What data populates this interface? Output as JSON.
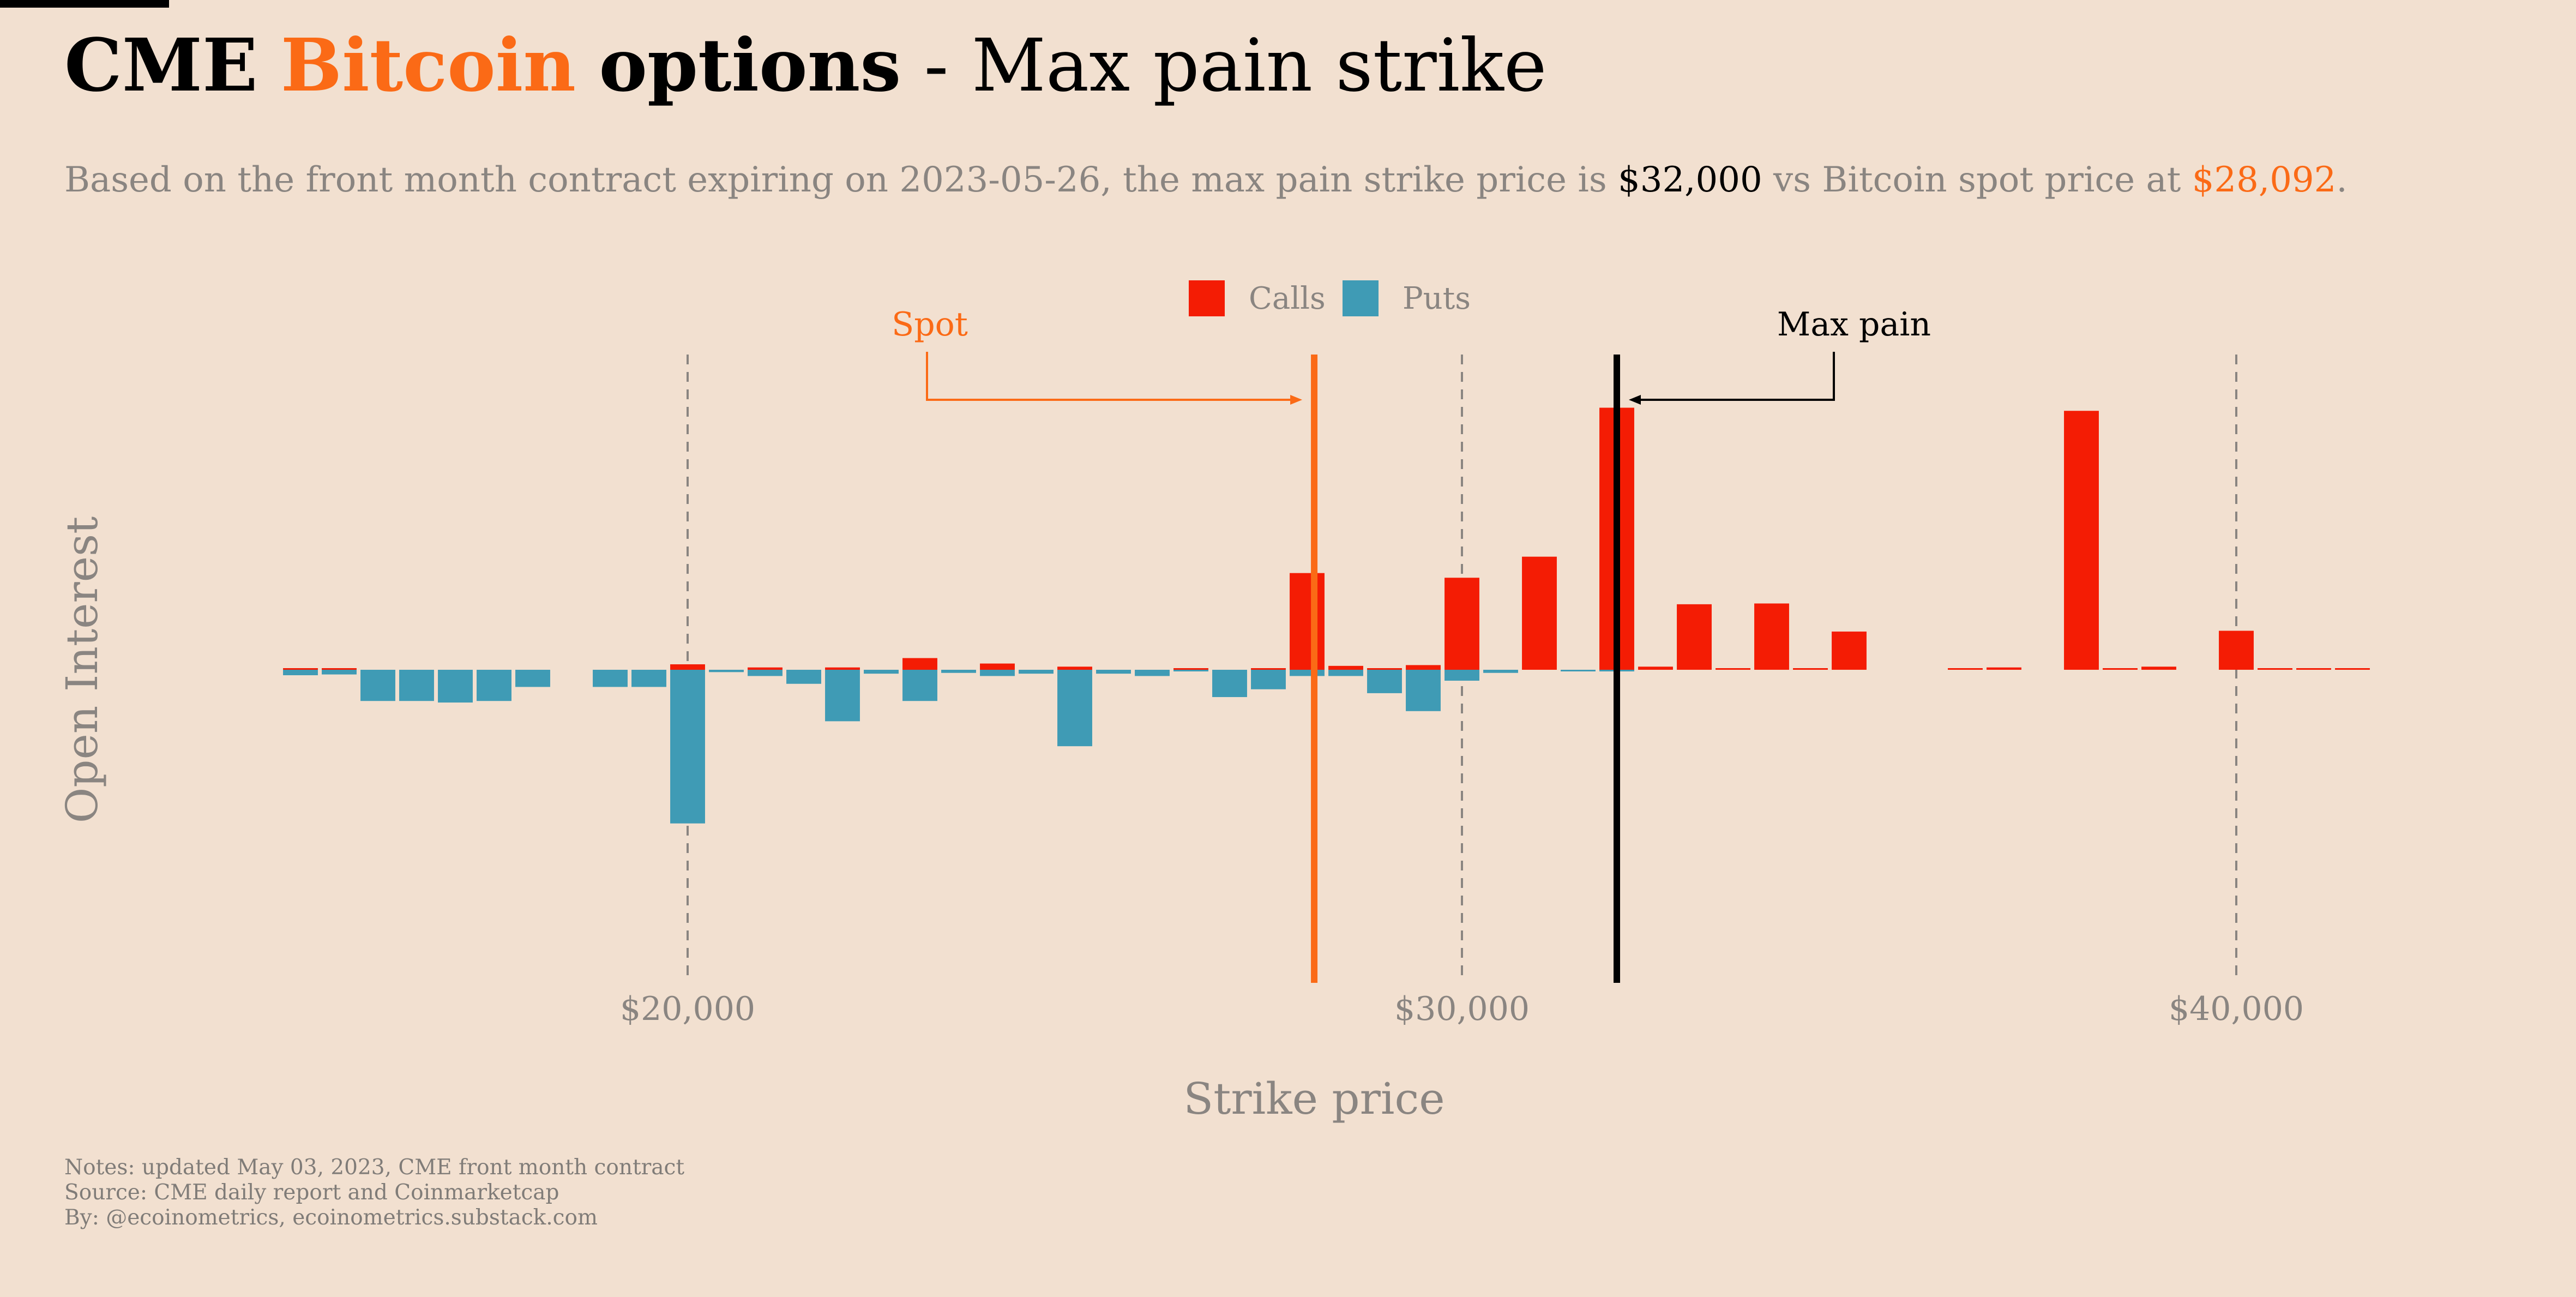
{
  "header": {
    "title_part1": "CME",
    "title_part2": "Bitcoin",
    "title_part3": "options",
    "title_part4": "- Max pain strike",
    "subtitle_prefix": "Based on the front month contract expiring on 2023-05-26, the max pain strike price is",
    "subtitle_maxpain": "$32,000",
    "subtitle_mid": "vs Bitcoin spot price at",
    "subtitle_spot": "$28,092",
    "subtitle_end": "."
  },
  "notes": {
    "line1": "Notes: updated May 03, 2023, CME front month contract",
    "line2": "Source: CME daily report and Coinmarketcap",
    "line3": "By: @ecoinometrics, ecoinometrics.substack.com"
  },
  "colors": {
    "calls": "#f41c04",
    "puts": "#3f9bb5",
    "spot": "#fb6a16",
    "maxpain": "#000000",
    "grid": "#8a8581"
  },
  "chart_data": {
    "type": "bar",
    "title": "CME Bitcoin options - Max pain strike",
    "xlabel": "Strike price",
    "ylabel": "Open Interest",
    "xlim": [
      14600,
      42100
    ],
    "ylim": [
      -400,
      415
    ],
    "bar_width_strike": 450,
    "xticks": [
      20000,
      30000,
      40000
    ],
    "xtick_labels": [
      "$20,000",
      "$30,000",
      "$40,000"
    ],
    "legend": {
      "position": "top-center",
      "entries": [
        "Calls",
        "Puts"
      ]
    },
    "annotations": {
      "spot_label": "Spot",
      "spot_value": 28092,
      "maxpain_label": "Max pain",
      "maxpain_value": 32000
    },
    "series": [
      {
        "name": "Calls",
        "points": [
          [
            15000,
            1
          ],
          [
            15500,
            1
          ],
          [
            20000,
            7
          ],
          [
            21000,
            3
          ],
          [
            22000,
            3
          ],
          [
            23000,
            15
          ],
          [
            24000,
            8
          ],
          [
            25000,
            4
          ],
          [
            26500,
            1
          ],
          [
            27500,
            1
          ],
          [
            28000,
            124
          ],
          [
            28500,
            5
          ],
          [
            29000,
            2
          ],
          [
            29500,
            6
          ],
          [
            30000,
            118
          ],
          [
            31000,
            145
          ],
          [
            32000,
            336
          ],
          [
            32500,
            4
          ],
          [
            33000,
            84
          ],
          [
            33500,
            1
          ],
          [
            34000,
            85
          ],
          [
            34500,
            2
          ],
          [
            35000,
            49
          ],
          [
            36500,
            1
          ],
          [
            37000,
            3
          ],
          [
            38000,
            332
          ],
          [
            38500,
            1
          ],
          [
            39000,
            4
          ],
          [
            40000,
            50
          ],
          [
            40500,
            1
          ],
          [
            41000,
            2
          ],
          [
            41500,
            1
          ]
        ]
      },
      {
        "name": "Puts",
        "points": [
          [
            15000,
            -7
          ],
          [
            15500,
            -6
          ],
          [
            16000,
            -40
          ],
          [
            16500,
            -40
          ],
          [
            17000,
            -42
          ],
          [
            17500,
            -40
          ],
          [
            18000,
            -22
          ],
          [
            19000,
            -22
          ],
          [
            19500,
            -22
          ],
          [
            20000,
            -197
          ],
          [
            20500,
            -3
          ],
          [
            21000,
            -8
          ],
          [
            21500,
            -18
          ],
          [
            22000,
            -66
          ],
          [
            22500,
            -5
          ],
          [
            23000,
            -40
          ],
          [
            23500,
            -4
          ],
          [
            24000,
            -8
          ],
          [
            24500,
            -5
          ],
          [
            25000,
            -98
          ],
          [
            25500,
            -5
          ],
          [
            26000,
            -8
          ],
          [
            26500,
            -1
          ],
          [
            27000,
            -35
          ],
          [
            27500,
            -25
          ],
          [
            28000,
            -8
          ],
          [
            28500,
            -8
          ],
          [
            29000,
            -30
          ],
          [
            29500,
            -53
          ],
          [
            30000,
            -14
          ],
          [
            30500,
            -4
          ],
          [
            31500,
            -2
          ],
          [
            32000,
            -2
          ]
        ]
      }
    ]
  }
}
